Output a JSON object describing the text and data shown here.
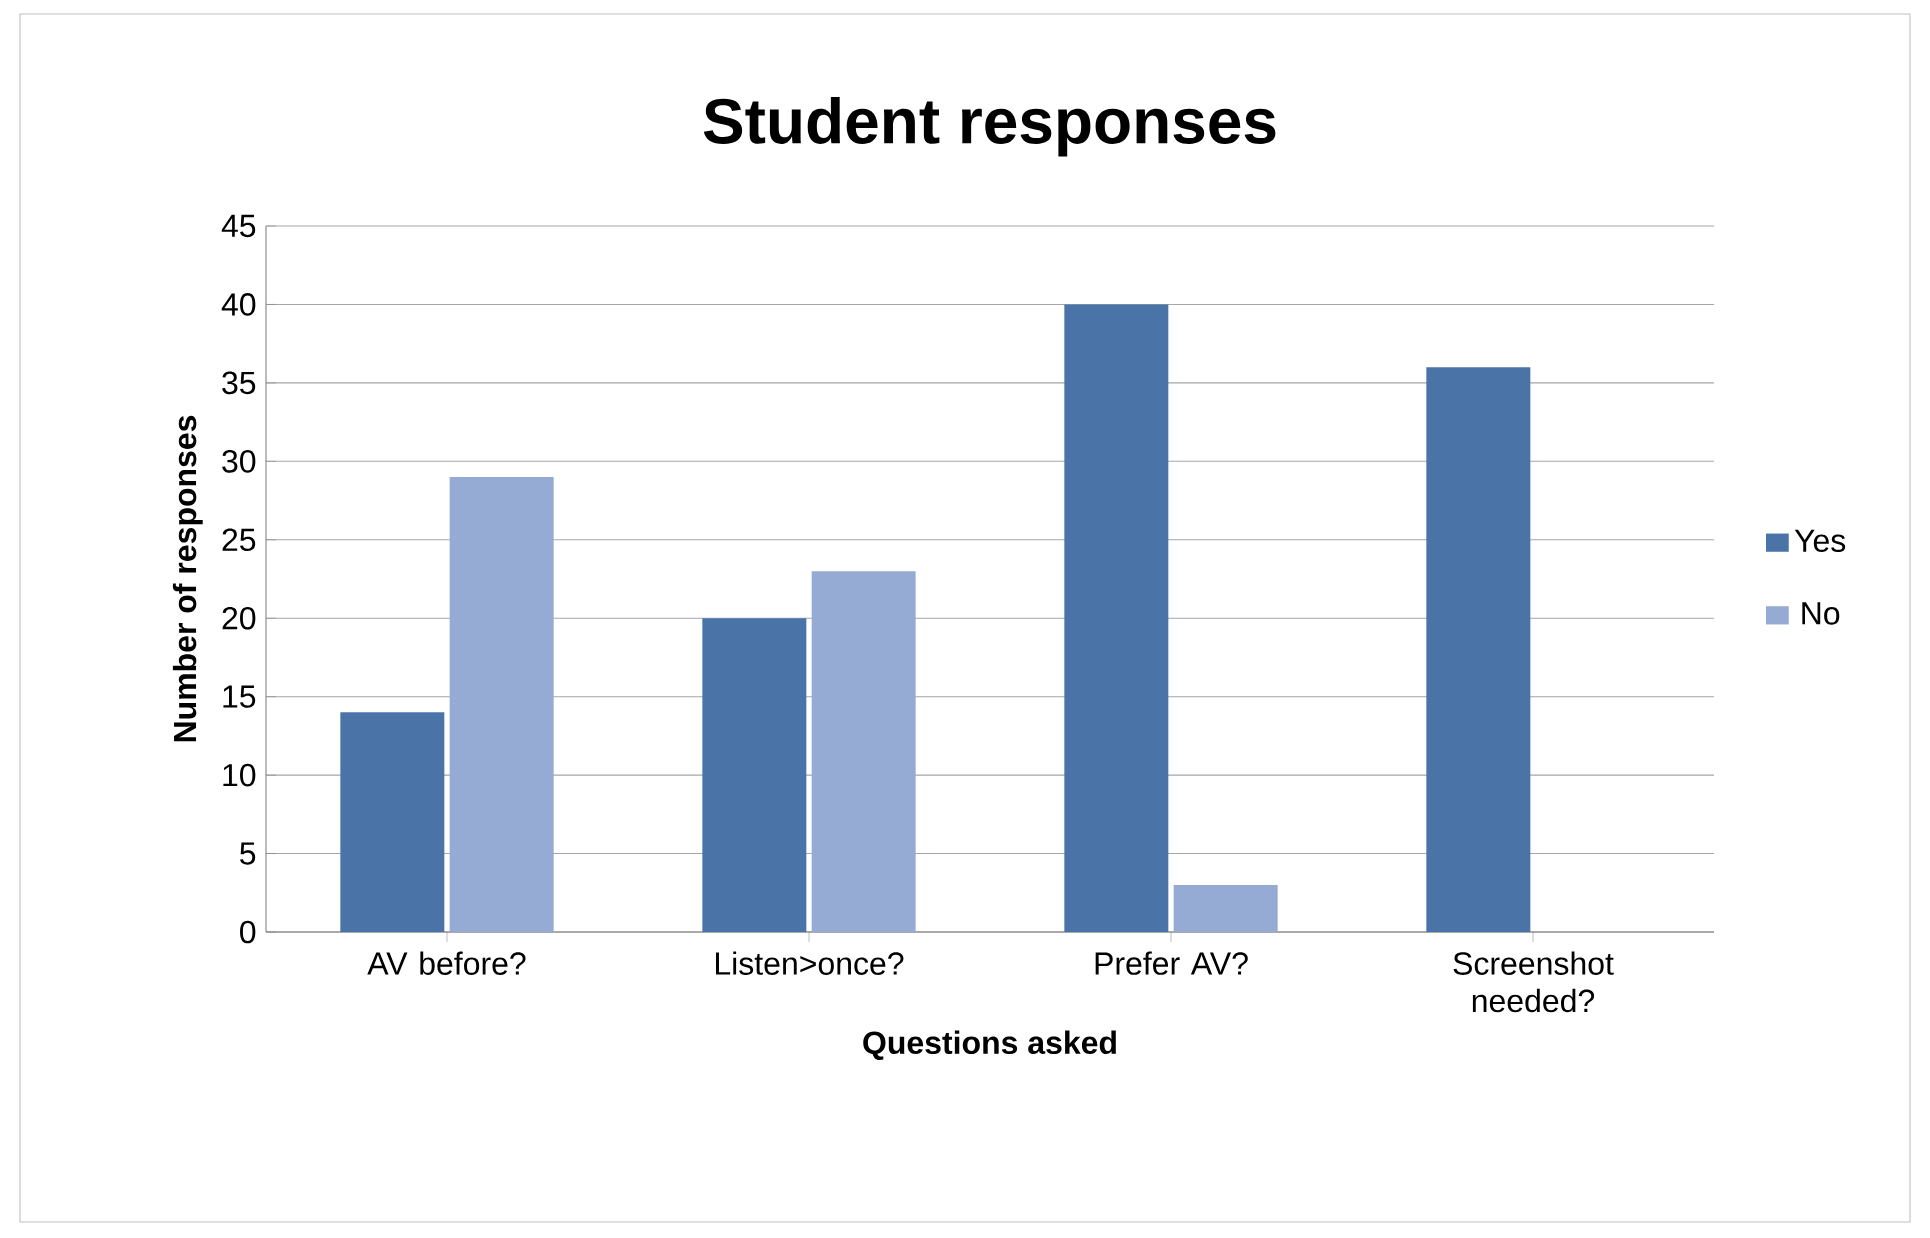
{
  "chart_data": {
    "type": "bar",
    "title": "Student responses",
    "xlabel": "Questions asked",
    "ylabel": "Number of responses",
    "categories": [
      "AV before?",
      "Listen>once?",
      "Prefer AV?",
      "Screenshot needed?"
    ],
    "series": [
      {
        "name": "Yes",
        "color": "#4a74a8",
        "values": [
          14,
          20,
          40,
          36
        ]
      },
      {
        "name": "No",
        "color": "#95abd3",
        "values": [
          29,
          23,
          3,
          0
        ]
      }
    ],
    "ylim": [
      0,
      45
    ],
    "yticks": [
      0,
      5,
      10,
      15,
      20,
      25,
      30,
      35,
      40,
      45
    ],
    "grid": "y",
    "legend": "right"
  }
}
